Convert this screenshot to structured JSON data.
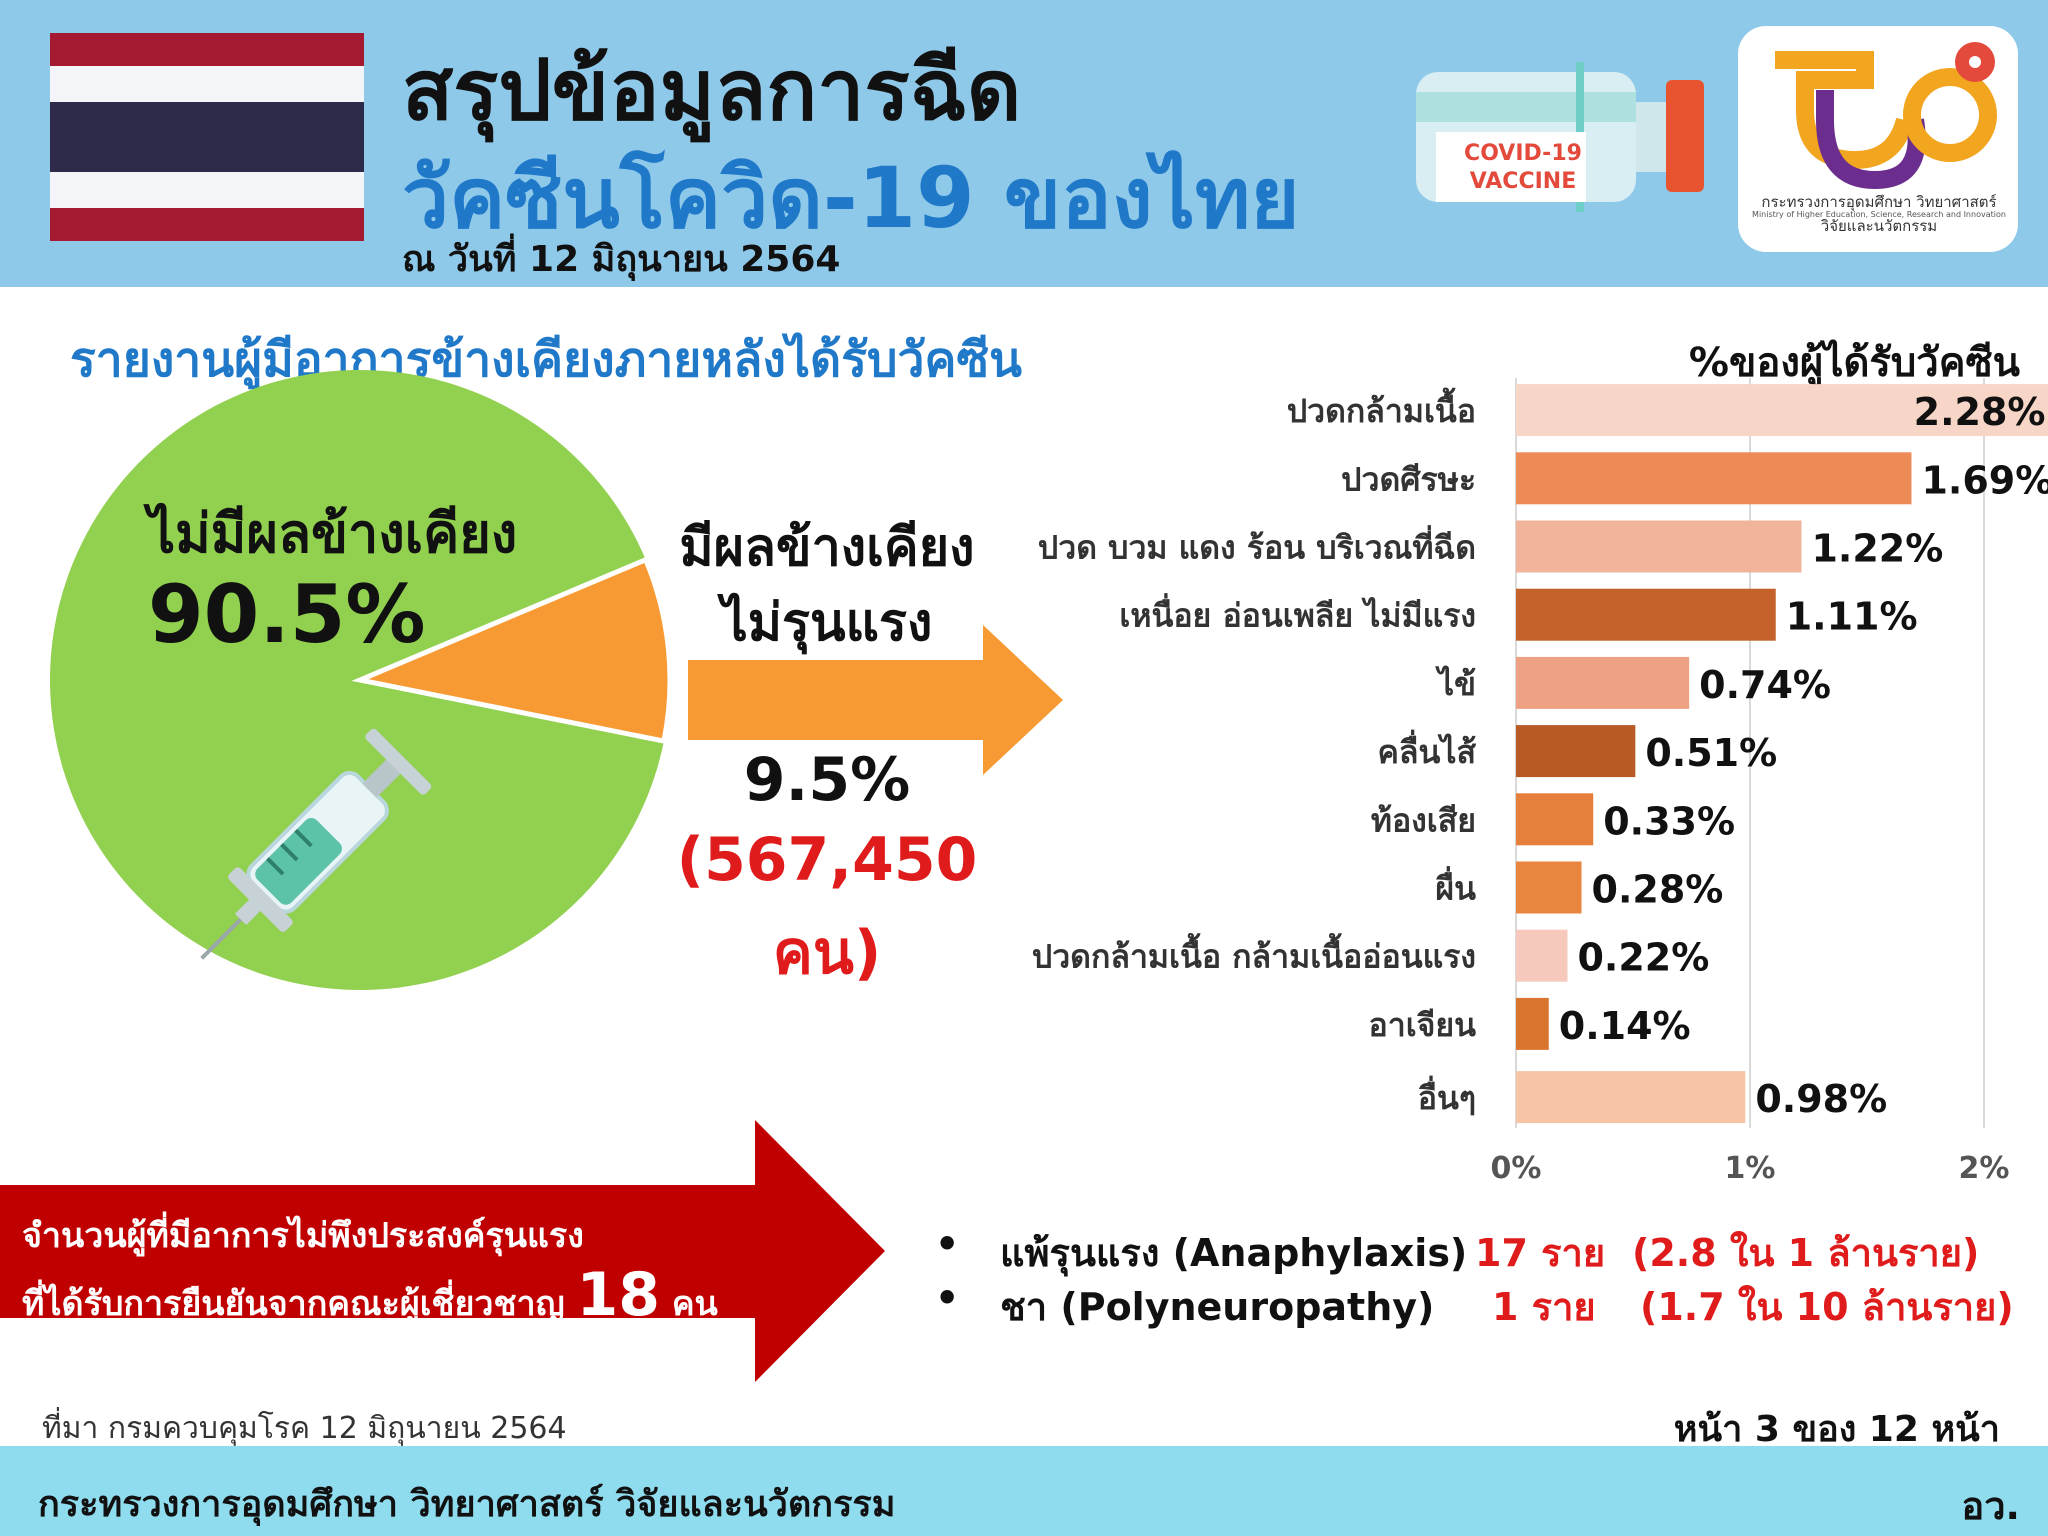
{
  "header": {
    "title_line1": "สรุปข้อมูลการฉีด",
    "title_line2": "วัคซีนโควิด-19 ของไทย",
    "date": "ณ วันที่ 12 มิถุนายน 2564",
    "vaccine_label_line1": "COVID-19",
    "vaccine_label_line2": "VACCINE",
    "logo_name_th": "กระทรวงการอุดมศึกษา วิทยาศาสตร์ วิจัยและนวัตกรรม",
    "logo_name_en": "Ministry of Higher Education, Science, Research and Innovation"
  },
  "section_title": "รายงานผู้มีอาการข้างเคียงภายหลังได้รับวัคซีน",
  "pie": {
    "label": "ไม่มีผลข้างเคียง",
    "value_text": "90.5%",
    "mild_label_line1": "มีผลข้างเคียง",
    "mild_label_line2": "ไม่รุนแรง",
    "mild_value_text": "9.5%",
    "mild_count_line1": "(567,450",
    "mild_count_line2": "คน)"
  },
  "chart_data": [
    {
      "type": "pie",
      "slices": [
        {
          "label": "ไม่มีผลข้างเคียง",
          "value": 90.5,
          "color": "#92d050"
        },
        {
          "label": "มีผลข้างเคียงไม่รุนแรง",
          "value": 9.5,
          "color": "#f79a34"
        }
      ]
    },
    {
      "type": "bar",
      "orientation": "horizontal",
      "title": "%ของผู้ได้รับวัคซีน",
      "categories": [
        "ปวดกล้ามเนื้อ",
        "ปวดศีรษะ",
        "ปวด บวม แดง ร้อน บริเวณที่ฉีด",
        "เหนื่อย อ่อนเพลีย ไม่มีแรง",
        "ไข้",
        "คลื่นไส้",
        "ท้องเสีย",
        "ผื่น",
        "ปวดกล้ามเนื้อ กล้ามเนื้ออ่อนแรง",
        "อาเจียน",
        "อื่นๆ"
      ],
      "values": [
        2.28,
        1.69,
        1.22,
        1.11,
        0.74,
        0.51,
        0.33,
        0.28,
        0.22,
        0.14,
        0.98
      ],
      "value_labels": [
        "2.28%",
        "1.69%",
        "1.22%",
        "1.11%",
        "0.74%",
        "0.51%",
        "0.33%",
        "0.28%",
        "0.22%",
        "0.14%",
        "0.98%"
      ],
      "colors": [
        "#f7d6c8",
        "#ec8b55",
        "#f2b39b",
        "#c5622b",
        "#eea283",
        "#b85a26",
        "#e57f3b",
        "#e8853f",
        "#f6c9bc",
        "#d9752f",
        "#f6c5a5"
      ],
      "xlim": [
        0,
        2
      ],
      "xticks": [
        "0%",
        "1%",
        "2%"
      ],
      "grid": true
    }
  ],
  "serious": {
    "line1": "จำนวนผู้ที่มีอาการไม่พึงประสงค์รุนแรง",
    "line2": "ที่ได้รับการยืนยันจากคณะผู้เชี่ยวชาญ",
    "count": "18",
    "unit": "คน",
    "items": [
      {
        "name": "แพ้รุนแรง (Anaphylaxis)",
        "count": "17 ราย",
        "rate": "(2.8 ใน 1 ล้านราย)"
      },
      {
        "name": "ชา (Polyneuropathy)",
        "count": "1 ราย",
        "rate": "(1.7 ใน 10 ล้านราย)"
      }
    ]
  },
  "source": "ที่มา กรมควบคุมโรค 12 มิถุนายน 2564",
  "page_number": "หน้า 3 ของ 12 หน้า",
  "footer": {
    "ministry": "กระทรวงการอุดมศึกษา วิทยาศาสตร์ วิจัยและนวัตกรรม",
    "abbr": "อว."
  },
  "colors": {
    "header_bg": "#8ec9ea",
    "footer_bg": "#8fdcef",
    "title_blue": "#1f78c8",
    "accent_red": "#e01b1b",
    "banner_red": "#c00000"
  }
}
